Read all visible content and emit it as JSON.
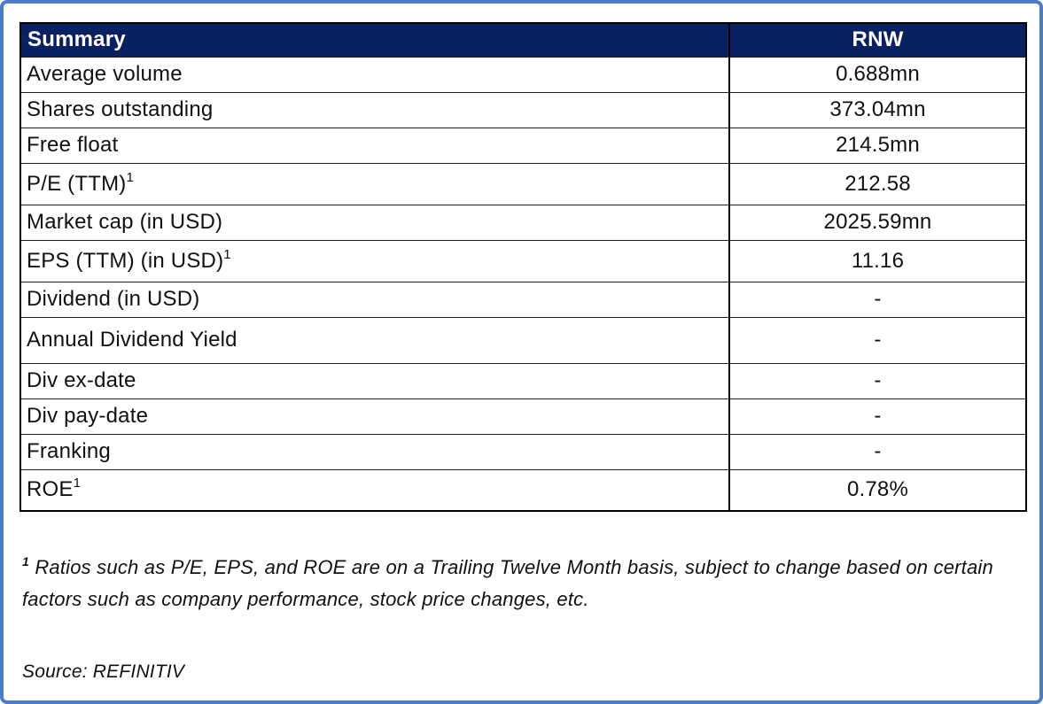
{
  "colors": {
    "header_bg": "#0a2161",
    "header_text": "#ffffff",
    "frame_border": "#4a7cc9",
    "cell_border": "#1f1f1f",
    "text": "#111111"
  },
  "table": {
    "header": {
      "summary_label": "Summary",
      "ticker_label": "RNW"
    },
    "rows": [
      {
        "label": "Average volume",
        "sup": "",
        "value": "0.688mn"
      },
      {
        "label": "Shares outstanding",
        "sup": "",
        "value": "373.04mn"
      },
      {
        "label": "Free float",
        "sup": "",
        "value": "214.5mn"
      },
      {
        "label": "P/E (TTM)",
        "sup": "1",
        "value": "212.58"
      },
      {
        "label": "Market cap (in USD)",
        "sup": "",
        "value": "2025.59mn"
      },
      {
        "label": "EPS (TTM) (in USD)",
        "sup": "1",
        "value": "11.16"
      },
      {
        "label": "Dividend (in USD)",
        "sup": "",
        "value": "-"
      },
      {
        "label": "Annual Dividend Yield",
        "sup": "",
        "value": "-"
      },
      {
        "label": "Div ex-date",
        "sup": "",
        "value": "-"
      },
      {
        "label": "Div pay-date",
        "sup": "",
        "value": "-"
      },
      {
        "label": "Franking",
        "sup": "",
        "value": "-"
      },
      {
        "label": "ROE",
        "sup": "1",
        "value": "0.78%"
      }
    ]
  },
  "footnote": {
    "sup": "1",
    "text": "Ratios such as P/E, EPS, and ROE are on a Trailing Twelve Month basis, subject to change based on certain factors such as company performance, stock price changes, etc."
  },
  "source": {
    "text": "Source: REFINITIV"
  }
}
